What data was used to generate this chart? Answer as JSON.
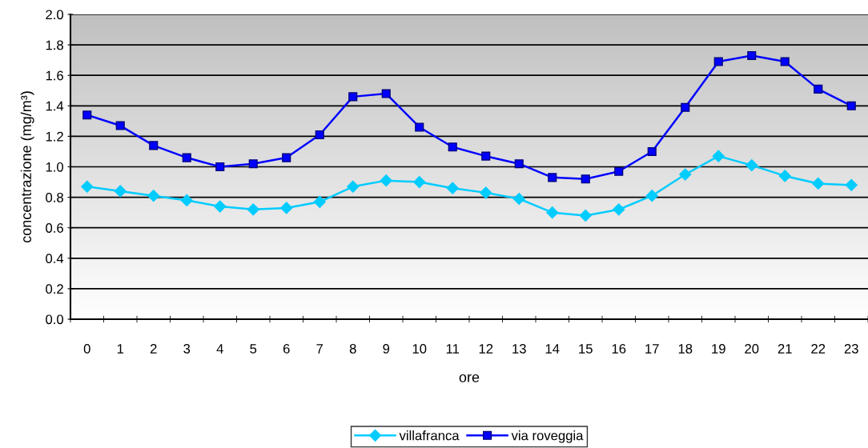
{
  "chart_data": {
    "type": "line",
    "xlabel": "ore",
    "ylabel": "concentrazione (mg/m³)",
    "categories": [
      "0",
      "1",
      "2",
      "3",
      "4",
      "5",
      "6",
      "7",
      "8",
      "9",
      "10",
      "11",
      "12",
      "13",
      "14",
      "15",
      "16",
      "17",
      "18",
      "19",
      "20",
      "21",
      "22",
      "23"
    ],
    "series": [
      {
        "name": "villafranca",
        "color": "#00ccff",
        "marker": "diamond",
        "values": [
          0.87,
          0.84,
          0.81,
          0.78,
          0.74,
          0.72,
          0.73,
          0.77,
          0.87,
          0.91,
          0.9,
          0.86,
          0.83,
          0.79,
          0.7,
          0.68,
          0.72,
          0.81,
          0.95,
          1.07,
          1.01,
          0.94,
          0.89,
          0.88
        ]
      },
      {
        "name": "via roveggia",
        "color": "#0000ff",
        "marker": "square",
        "values": [
          1.34,
          1.27,
          1.14,
          1.06,
          1.0,
          1.02,
          1.06,
          1.21,
          1.46,
          1.48,
          1.26,
          1.13,
          1.07,
          1.02,
          0.93,
          0.92,
          0.97,
          1.1,
          1.39,
          1.69,
          1.73,
          1.69,
          1.51,
          1.4
        ]
      }
    ],
    "ylim": [
      0,
      2.0
    ],
    "yticks": [
      {
        "value": 0,
        "label": "0.0"
      },
      {
        "value": 0.2,
        "label": "0.2"
      },
      {
        "value": 0.4,
        "label": "0.4"
      },
      {
        "value": 0.6,
        "label": "0.6"
      },
      {
        "value": 0.8,
        "label": "0.8"
      },
      {
        "value": 1.0,
        "label": "1.0"
      },
      {
        "value": 1.2,
        "label": "1.2"
      },
      {
        "value": 1.4,
        "label": "1.4"
      },
      {
        "value": 1.6,
        "label": "1.6"
      },
      {
        "value": 1.8,
        "label": "1.8"
      },
      {
        "value": 2.0,
        "label": "2.0"
      }
    ],
    "grid": "y",
    "legend": "bottom",
    "line_style": "solid"
  }
}
